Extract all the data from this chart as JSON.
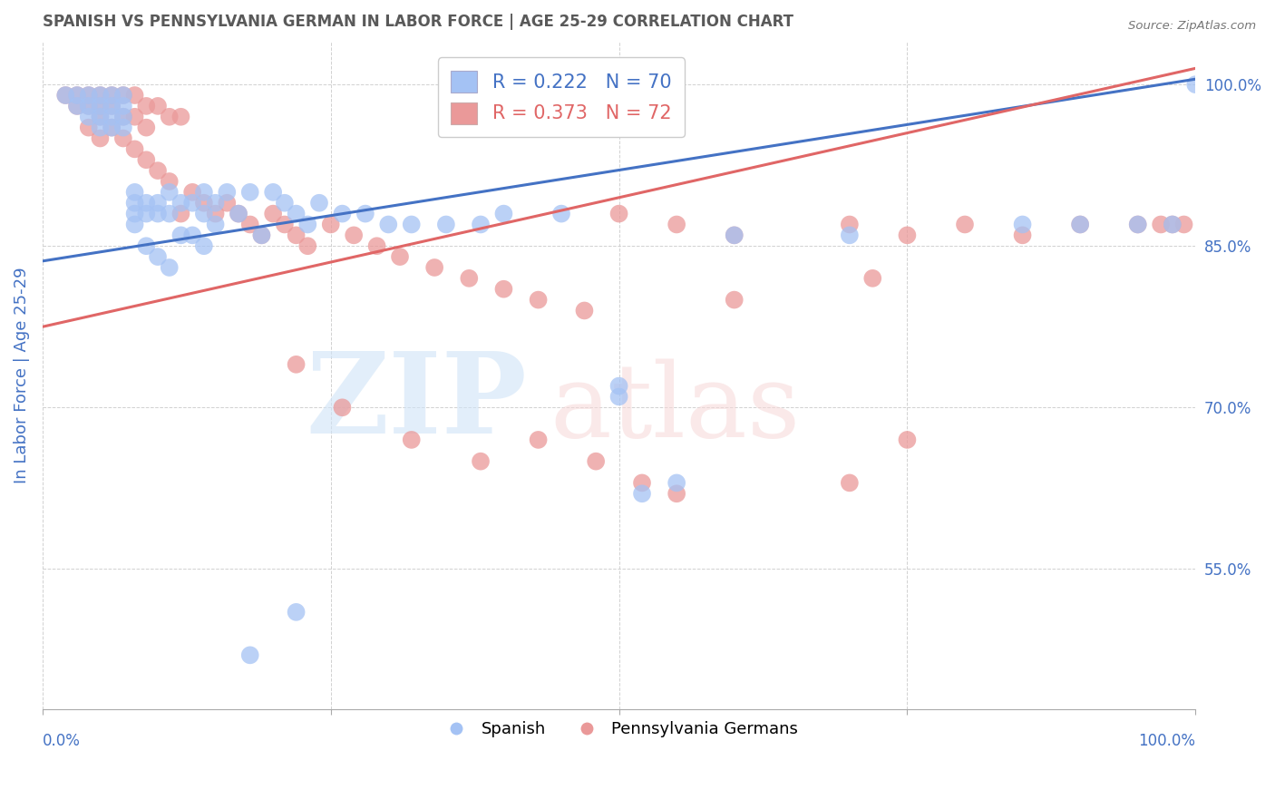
{
  "title": "SPANISH VS PENNSYLVANIA GERMAN IN LABOR FORCE | AGE 25-29 CORRELATION CHART",
  "source": "Source: ZipAtlas.com",
  "ylabel": "In Labor Force | Age 25-29",
  "y_ticks": [
    0.55,
    0.7,
    0.85,
    1.0
  ],
  "y_tick_labels": [
    "55.0%",
    "70.0%",
    "85.0%",
    "100.0%"
  ],
  "x_range": [
    0.0,
    1.0
  ],
  "y_range": [
    0.42,
    1.04
  ],
  "blue_color": "#a4c2f4",
  "pink_color": "#ea9999",
  "blue_line_color": "#4472c4",
  "pink_line_color": "#e06666",
  "title_color": "#595959",
  "axis_label_color": "#4472c4",
  "blue_line_x": [
    0.0,
    1.0
  ],
  "blue_line_y": [
    0.836,
    1.005
  ],
  "pink_line_x": [
    0.0,
    1.0
  ],
  "pink_line_y": [
    0.775,
    1.015
  ],
  "blue_scatter_x": [
    0.02,
    0.03,
    0.03,
    0.04,
    0.04,
    0.04,
    0.05,
    0.05,
    0.05,
    0.05,
    0.06,
    0.06,
    0.06,
    0.06,
    0.07,
    0.07,
    0.07,
    0.07,
    0.08,
    0.08,
    0.08,
    0.08,
    0.09,
    0.09,
    0.09,
    0.1,
    0.1,
    0.1,
    0.11,
    0.11,
    0.11,
    0.12,
    0.12,
    0.13,
    0.13,
    0.14,
    0.14,
    0.14,
    0.15,
    0.15,
    0.16,
    0.17,
    0.18,
    0.19,
    0.2,
    0.21,
    0.22,
    0.23,
    0.24,
    0.26,
    0.28,
    0.3,
    0.32,
    0.35,
    0.38,
    0.4,
    0.45,
    0.5,
    0.55,
    0.6,
    0.18,
    0.22,
    0.5,
    0.52,
    0.7,
    0.85,
    0.9,
    0.95,
    0.98,
    1.0
  ],
  "blue_scatter_y": [
    0.99,
    0.99,
    0.98,
    0.99,
    0.98,
    0.97,
    0.99,
    0.98,
    0.97,
    0.96,
    0.99,
    0.98,
    0.97,
    0.96,
    0.99,
    0.98,
    0.97,
    0.96,
    0.9,
    0.89,
    0.88,
    0.87,
    0.89,
    0.88,
    0.85,
    0.89,
    0.88,
    0.84,
    0.9,
    0.88,
    0.83,
    0.89,
    0.86,
    0.89,
    0.86,
    0.9,
    0.88,
    0.85,
    0.89,
    0.87,
    0.9,
    0.88,
    0.9,
    0.86,
    0.9,
    0.89,
    0.88,
    0.87,
    0.89,
    0.88,
    0.88,
    0.87,
    0.87,
    0.87,
    0.87,
    0.88,
    0.88,
    0.71,
    0.63,
    0.86,
    0.47,
    0.51,
    0.72,
    0.62,
    0.86,
    0.87,
    0.87,
    0.87,
    0.87,
    1.0
  ],
  "pink_scatter_x": [
    0.02,
    0.03,
    0.03,
    0.04,
    0.04,
    0.04,
    0.05,
    0.05,
    0.05,
    0.05,
    0.06,
    0.06,
    0.06,
    0.07,
    0.07,
    0.07,
    0.08,
    0.08,
    0.08,
    0.09,
    0.09,
    0.09,
    0.1,
    0.1,
    0.11,
    0.11,
    0.12,
    0.12,
    0.13,
    0.14,
    0.15,
    0.16,
    0.17,
    0.18,
    0.19,
    0.2,
    0.21,
    0.22,
    0.23,
    0.25,
    0.27,
    0.29,
    0.31,
    0.34,
    0.37,
    0.4,
    0.43,
    0.47,
    0.5,
    0.55,
    0.6,
    0.7,
    0.75,
    0.8,
    0.85,
    0.9,
    0.95,
    0.97,
    0.98,
    0.99,
    0.22,
    0.26,
    0.32,
    0.38,
    0.43,
    0.48,
    0.52,
    0.55,
    0.6,
    0.7,
    0.72,
    0.75
  ],
  "pink_scatter_y": [
    0.99,
    0.99,
    0.98,
    0.99,
    0.98,
    0.96,
    0.99,
    0.98,
    0.97,
    0.95,
    0.99,
    0.98,
    0.96,
    0.99,
    0.97,
    0.95,
    0.99,
    0.97,
    0.94,
    0.98,
    0.96,
    0.93,
    0.98,
    0.92,
    0.97,
    0.91,
    0.97,
    0.88,
    0.9,
    0.89,
    0.88,
    0.89,
    0.88,
    0.87,
    0.86,
    0.88,
    0.87,
    0.86,
    0.85,
    0.87,
    0.86,
    0.85,
    0.84,
    0.83,
    0.82,
    0.81,
    0.8,
    0.79,
    0.88,
    0.87,
    0.86,
    0.87,
    0.86,
    0.87,
    0.86,
    0.87,
    0.87,
    0.87,
    0.87,
    0.87,
    0.74,
    0.7,
    0.67,
    0.65,
    0.67,
    0.65,
    0.63,
    0.62,
    0.8,
    0.63,
    0.82,
    0.67
  ]
}
